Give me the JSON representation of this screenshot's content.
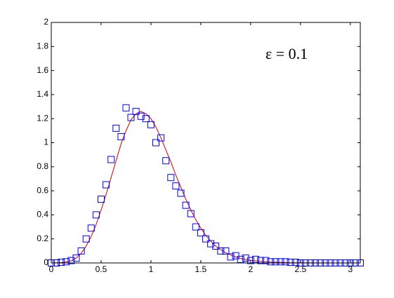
{
  "chart_data": {
    "type": "scatter",
    "title": "",
    "xlabel": "",
    "ylabel": "",
    "xlim": [
      0,
      3.1
    ],
    "ylim": [
      0,
      2
    ],
    "x_ticks": [
      0,
      0.5,
      1,
      1.5,
      2,
      2.5,
      3
    ],
    "x_tick_labels": [
      "0",
      "0.5",
      "1",
      "1.5",
      "2",
      "2.5",
      "3"
    ],
    "y_ticks": [
      0,
      0.2,
      0.4,
      0.6,
      0.8,
      1,
      1.2,
      1.4,
      1.6,
      1.8,
      2
    ],
    "y_tick_labels": [
      "0",
      "0.2",
      "0.4",
      "0.6",
      "0.8",
      "1",
      "1.2",
      "1.4",
      "1.6",
      "1.8",
      "2"
    ],
    "grid": false,
    "annotation": "ε = 0.1",
    "series": [
      {
        "kind": "line",
        "color": "#cc0000",
        "x": [
          0,
          0.05,
          0.1,
          0.15,
          0.2,
          0.25,
          0.3,
          0.35,
          0.4,
          0.45,
          0.5,
          0.55,
          0.6,
          0.65,
          0.7,
          0.75,
          0.8,
          0.85,
          0.9,
          0.95,
          1.0,
          1.05,
          1.1,
          1.15,
          1.2,
          1.25,
          1.3,
          1.35,
          1.4,
          1.45,
          1.5,
          1.55,
          1.6,
          1.65,
          1.7,
          1.75,
          1.8,
          1.85,
          1.9,
          1.95,
          2.0,
          2.1,
          2.2,
          2.3,
          2.4,
          2.5,
          2.6,
          2.7,
          2.8,
          2.9,
          3.0,
          3.1
        ],
        "y": [
          0,
          0.001,
          0.003,
          0.008,
          0.018,
          0.04,
          0.08,
          0.14,
          0.22,
          0.32,
          0.44,
          0.57,
          0.71,
          0.85,
          0.99,
          1.1,
          1.19,
          1.24,
          1.26,
          1.24,
          1.2,
          1.13,
          1.04,
          0.94,
          0.84,
          0.73,
          0.63,
          0.53,
          0.44,
          0.36,
          0.29,
          0.23,
          0.18,
          0.14,
          0.11,
          0.085,
          0.066,
          0.05,
          0.038,
          0.029,
          0.022,
          0.012,
          0.007,
          0.004,
          0.002,
          0.001,
          0.0006,
          0.0003,
          0.0002,
          0.0001,
          0.0001,
          0
        ]
      },
      {
        "kind": "markers",
        "marker": "square",
        "color": "#0000ff",
        "x": [
          0,
          0.05,
          0.1,
          0.15,
          0.2,
          0.25,
          0.3,
          0.35,
          0.4,
          0.45,
          0.5,
          0.55,
          0.6,
          0.65,
          0.7,
          0.75,
          0.8,
          0.85,
          0.9,
          0.95,
          1.0,
          1.05,
          1.1,
          1.15,
          1.2,
          1.25,
          1.3,
          1.35,
          1.4,
          1.45,
          1.5,
          1.55,
          1.6,
          1.65,
          1.7,
          1.75,
          1.8,
          1.85,
          1.9,
          1.95,
          2.0,
          2.05,
          2.1,
          2.15,
          2.2,
          2.25,
          2.3,
          2.35,
          2.4,
          2.45,
          2.5,
          2.55,
          2.6,
          2.65,
          2.7,
          2.75,
          2.8,
          2.85,
          2.9,
          2.95,
          3.0,
          3.05,
          3.1
        ],
        "y": [
          0.0,
          0.0,
          0.005,
          0.01,
          0.02,
          0.04,
          0.1,
          0.2,
          0.29,
          0.4,
          0.53,
          0.65,
          0.86,
          1.12,
          1.05,
          1.29,
          1.21,
          1.26,
          1.22,
          1.2,
          1.15,
          1.0,
          1.04,
          0.85,
          0.71,
          0.64,
          0.58,
          0.48,
          0.41,
          0.3,
          0.25,
          0.2,
          0.16,
          0.14,
          0.1,
          0.1,
          0.05,
          0.06,
          0.03,
          0.04,
          0.02,
          0.03,
          0.02,
          0.02,
          0.01,
          0.01,
          0.01,
          0.01,
          0.005,
          0.005,
          0.0,
          0.0,
          0.0,
          0.0,
          0.0,
          0.0,
          0.0,
          0.0,
          0.0,
          0.0,
          0.0,
          0.0,
          0.0
        ]
      }
    ]
  }
}
